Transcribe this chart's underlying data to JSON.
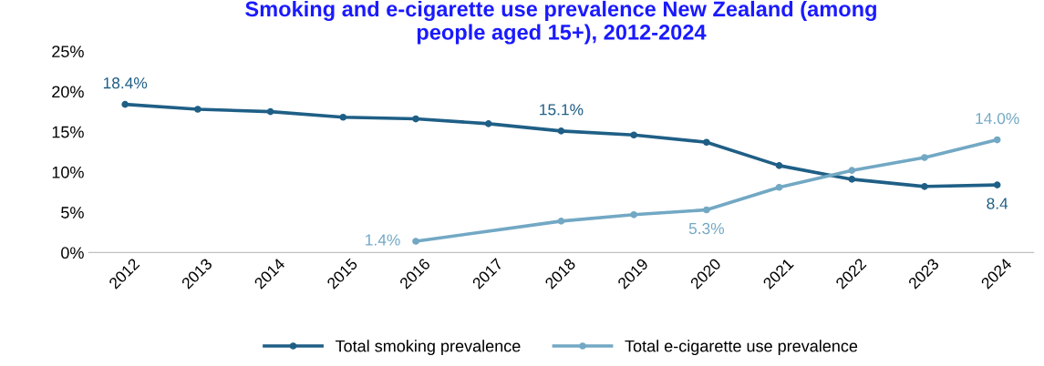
{
  "chart_data": {
    "type": "line",
    "title": "Smoking and e-cigarette use prevalence New Zealand (among\npeople aged 15+), 2012-2024",
    "categories": [
      "2012",
      "2013",
      "2014",
      "2015",
      "2016",
      "2017",
      "2018",
      "2019",
      "2020",
      "2021",
      "2022",
      "2023",
      "2024"
    ],
    "series": [
      {
        "name": "Total smoking prevalence",
        "color": "#1f5f86",
        "values": [
          18.4,
          17.8,
          17.5,
          16.8,
          16.6,
          16.0,
          15.1,
          14.6,
          13.7,
          10.8,
          9.1,
          8.2,
          8.4
        ],
        "value_labels": [
          "18.4%",
          null,
          null,
          null,
          null,
          null,
          "15.1%",
          null,
          null,
          null,
          null,
          null,
          "8.4"
        ]
      },
      {
        "name": "Total e-cigarette use prevalence",
        "color": "#72a8c4",
        "values": [
          null,
          null,
          null,
          null,
          1.4,
          null,
          3.9,
          4.7,
          5.3,
          8.1,
          10.2,
          11.8,
          14.0
        ],
        "value_labels": [
          null,
          null,
          null,
          null,
          "1.4%",
          null,
          null,
          null,
          "5.3%",
          null,
          null,
          null,
          "14.0%"
        ]
      }
    ],
    "ylim": [
      0,
      25
    ],
    "yticks": [
      {
        "value": 0,
        "label": "0%"
      },
      {
        "value": 5,
        "label": "5%"
      },
      {
        "value": 10,
        "label": "10%"
      },
      {
        "value": 15,
        "label": "15%"
      },
      {
        "value": 20,
        "label": "20%"
      },
      {
        "value": 25,
        "label": "25%"
      }
    ],
    "grid": false,
    "legend": "bottom",
    "marker": "circle",
    "line_style": "solid"
  }
}
